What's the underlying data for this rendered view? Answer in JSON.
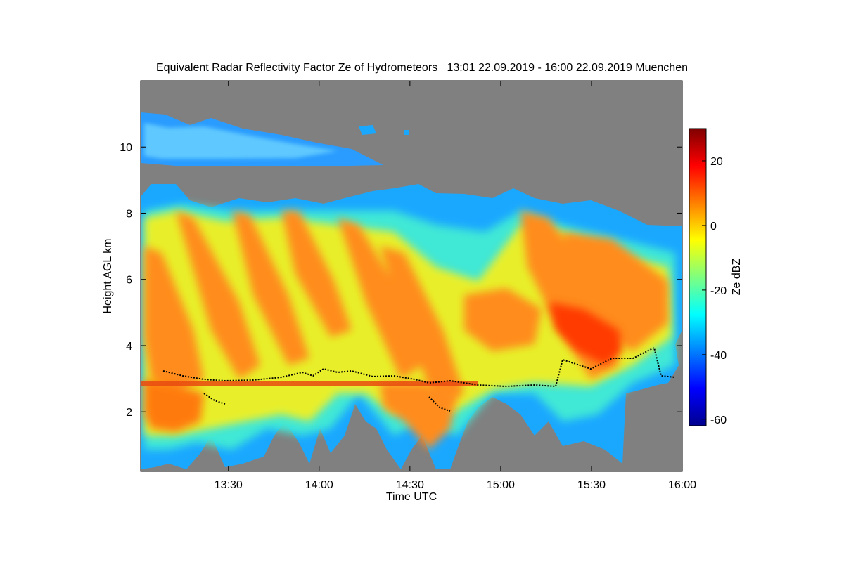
{
  "chart_data": {
    "type": "heatmap",
    "title": "Equivalent Radar Reflectivity Factor Ze of Hydrometeors   13:01 22.09.2019 - 16:00 22.09.2019 Muenchen",
    "xlabel": "Time UTC",
    "ylabel": "Height AGL km",
    "colorbar_label": "Ze dBZ",
    "x_ticks": [
      "13:30",
      "14:00",
      "14:30",
      "15:00",
      "15:30",
      "16:00"
    ],
    "x_tick_minutes": [
      30,
      60,
      90,
      120,
      150,
      180
    ],
    "xlim_minutes": [
      1,
      180
    ],
    "y_ticks": [
      2,
      4,
      6,
      8,
      10
    ],
    "ylim": [
      0.2,
      12.0
    ],
    "colorbar_ticks": [
      20,
      0,
      -20,
      -40,
      -60
    ],
    "colorbar_range": [
      -62,
      30
    ],
    "background_color": "#808080",
    "colormap": [
      "#00008f",
      "#0000ff",
      "#007fff",
      "#00ffff",
      "#7fff7f",
      "#ffff00",
      "#ff7f00",
      "#ff0000",
      "#7f0000"
    ]
  }
}
